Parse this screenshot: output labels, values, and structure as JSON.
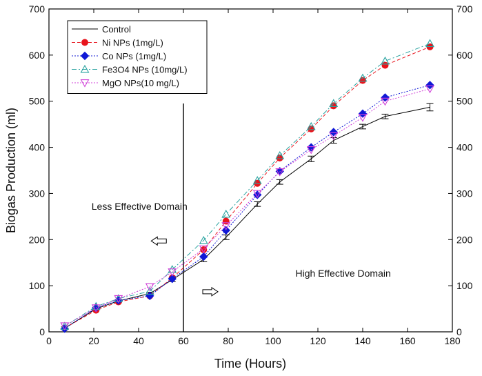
{
  "chart_data": {
    "type": "line",
    "xlabel": "Time (Hours)",
    "ylabel": "Biogas Production (ml)",
    "xlim": [
      0,
      180
    ],
    "ylim": [
      0,
      700
    ],
    "xticks": [
      0,
      20,
      40,
      60,
      80,
      100,
      120,
      140,
      160,
      180
    ],
    "yticks": [
      0,
      100,
      200,
      300,
      400,
      500,
      600,
      700
    ],
    "right_axis": true,
    "grid": false,
    "legend_position": "top-left",
    "x": [
      7,
      21,
      31,
      45,
      55,
      69,
      79,
      93,
      103,
      117,
      127,
      140,
      150,
      170
    ],
    "series": [
      {
        "name": "Control",
        "color": "#000000",
        "marker": "none",
        "line": "solid",
        "values": [
          8,
          50,
          67,
          83,
          113,
          157,
          205,
          277,
          325,
          375,
          415,
          445,
          467,
          487
        ],
        "errors": [
          3,
          3,
          3,
          3,
          4,
          5,
          5,
          5,
          5,
          6,
          6,
          5,
          5,
          8
        ]
      },
      {
        "name": "Ni NPs (1mg/L)",
        "color": "#e8141c",
        "marker": "circle",
        "line": "dash",
        "values": [
          8,
          47,
          65,
          78,
          117,
          178,
          240,
          322,
          377,
          440,
          490,
          545,
          578,
          618
        ]
      },
      {
        "name": "Co NPs (1mg/L)",
        "color": "#1018d6",
        "marker": "diamond",
        "line": "dot",
        "values": [
          7,
          52,
          68,
          78,
          115,
          163,
          220,
          297,
          348,
          400,
          433,
          473,
          508,
          535
        ]
      },
      {
        "name": "Fe3O4 NPs (10mg/L)",
        "color": "#2aa3a0",
        "marker": "triangle-up",
        "line": "dashdot",
        "values": [
          12,
          55,
          72,
          88,
          135,
          198,
          255,
          328,
          382,
          445,
          495,
          550,
          587,
          625
        ]
      },
      {
        "name": "MgO NPs(10 mg/L)",
        "color": "#d040d8",
        "marker": "triangle-down",
        "line": "dot",
        "values": [
          13,
          52,
          72,
          98,
          130,
          180,
          230,
          300,
          347,
          395,
          425,
          465,
          500,
          527
        ]
      }
    ],
    "divider_x": 60,
    "annotations": [
      {
        "text": "Less Effective Domain",
        "x": 19,
        "y": 265
      },
      {
        "text": "High Effective Domain",
        "x": 110,
        "y": 120
      }
    ],
    "arrows": [
      {
        "direction": "left",
        "x": 49,
        "y": 197
      },
      {
        "direction": "right",
        "x": 72,
        "y": 87
      }
    ]
  }
}
